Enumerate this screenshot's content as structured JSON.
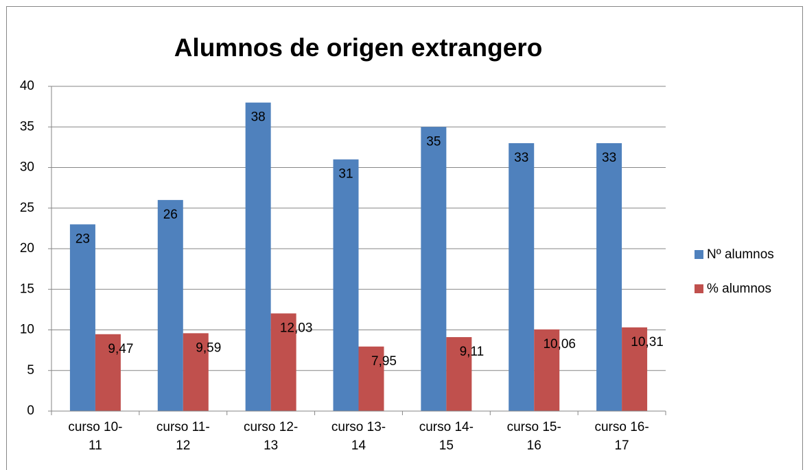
{
  "chart_data": {
    "type": "bar",
    "title": "Alumnos de origen extrangero",
    "categories": [
      "curso 10-11",
      "curso 11-12",
      "curso 12-13",
      "curso 13-14",
      "curso 14-15",
      "curso 15-16",
      "curso 16-17"
    ],
    "series": [
      {
        "name": "Nº alumnos",
        "color": "#4f81bd",
        "values": [
          23,
          26,
          38,
          31,
          35,
          33,
          33
        ]
      },
      {
        "name": "% alumnos",
        "color": "#c0504d",
        "values": [
          9.47,
          9.59,
          12.03,
          7.95,
          9.11,
          10.06,
          10.31
        ],
        "value_labels": [
          "9,47",
          "9,59",
          "12,03",
          "7,95",
          "9,11",
          "10,06",
          "10,31"
        ]
      }
    ],
    "ylim": [
      0,
      40
    ],
    "yticks": [
      0,
      5,
      10,
      15,
      20,
      25,
      30,
      35,
      40
    ],
    "grid": true,
    "legend": "right"
  }
}
